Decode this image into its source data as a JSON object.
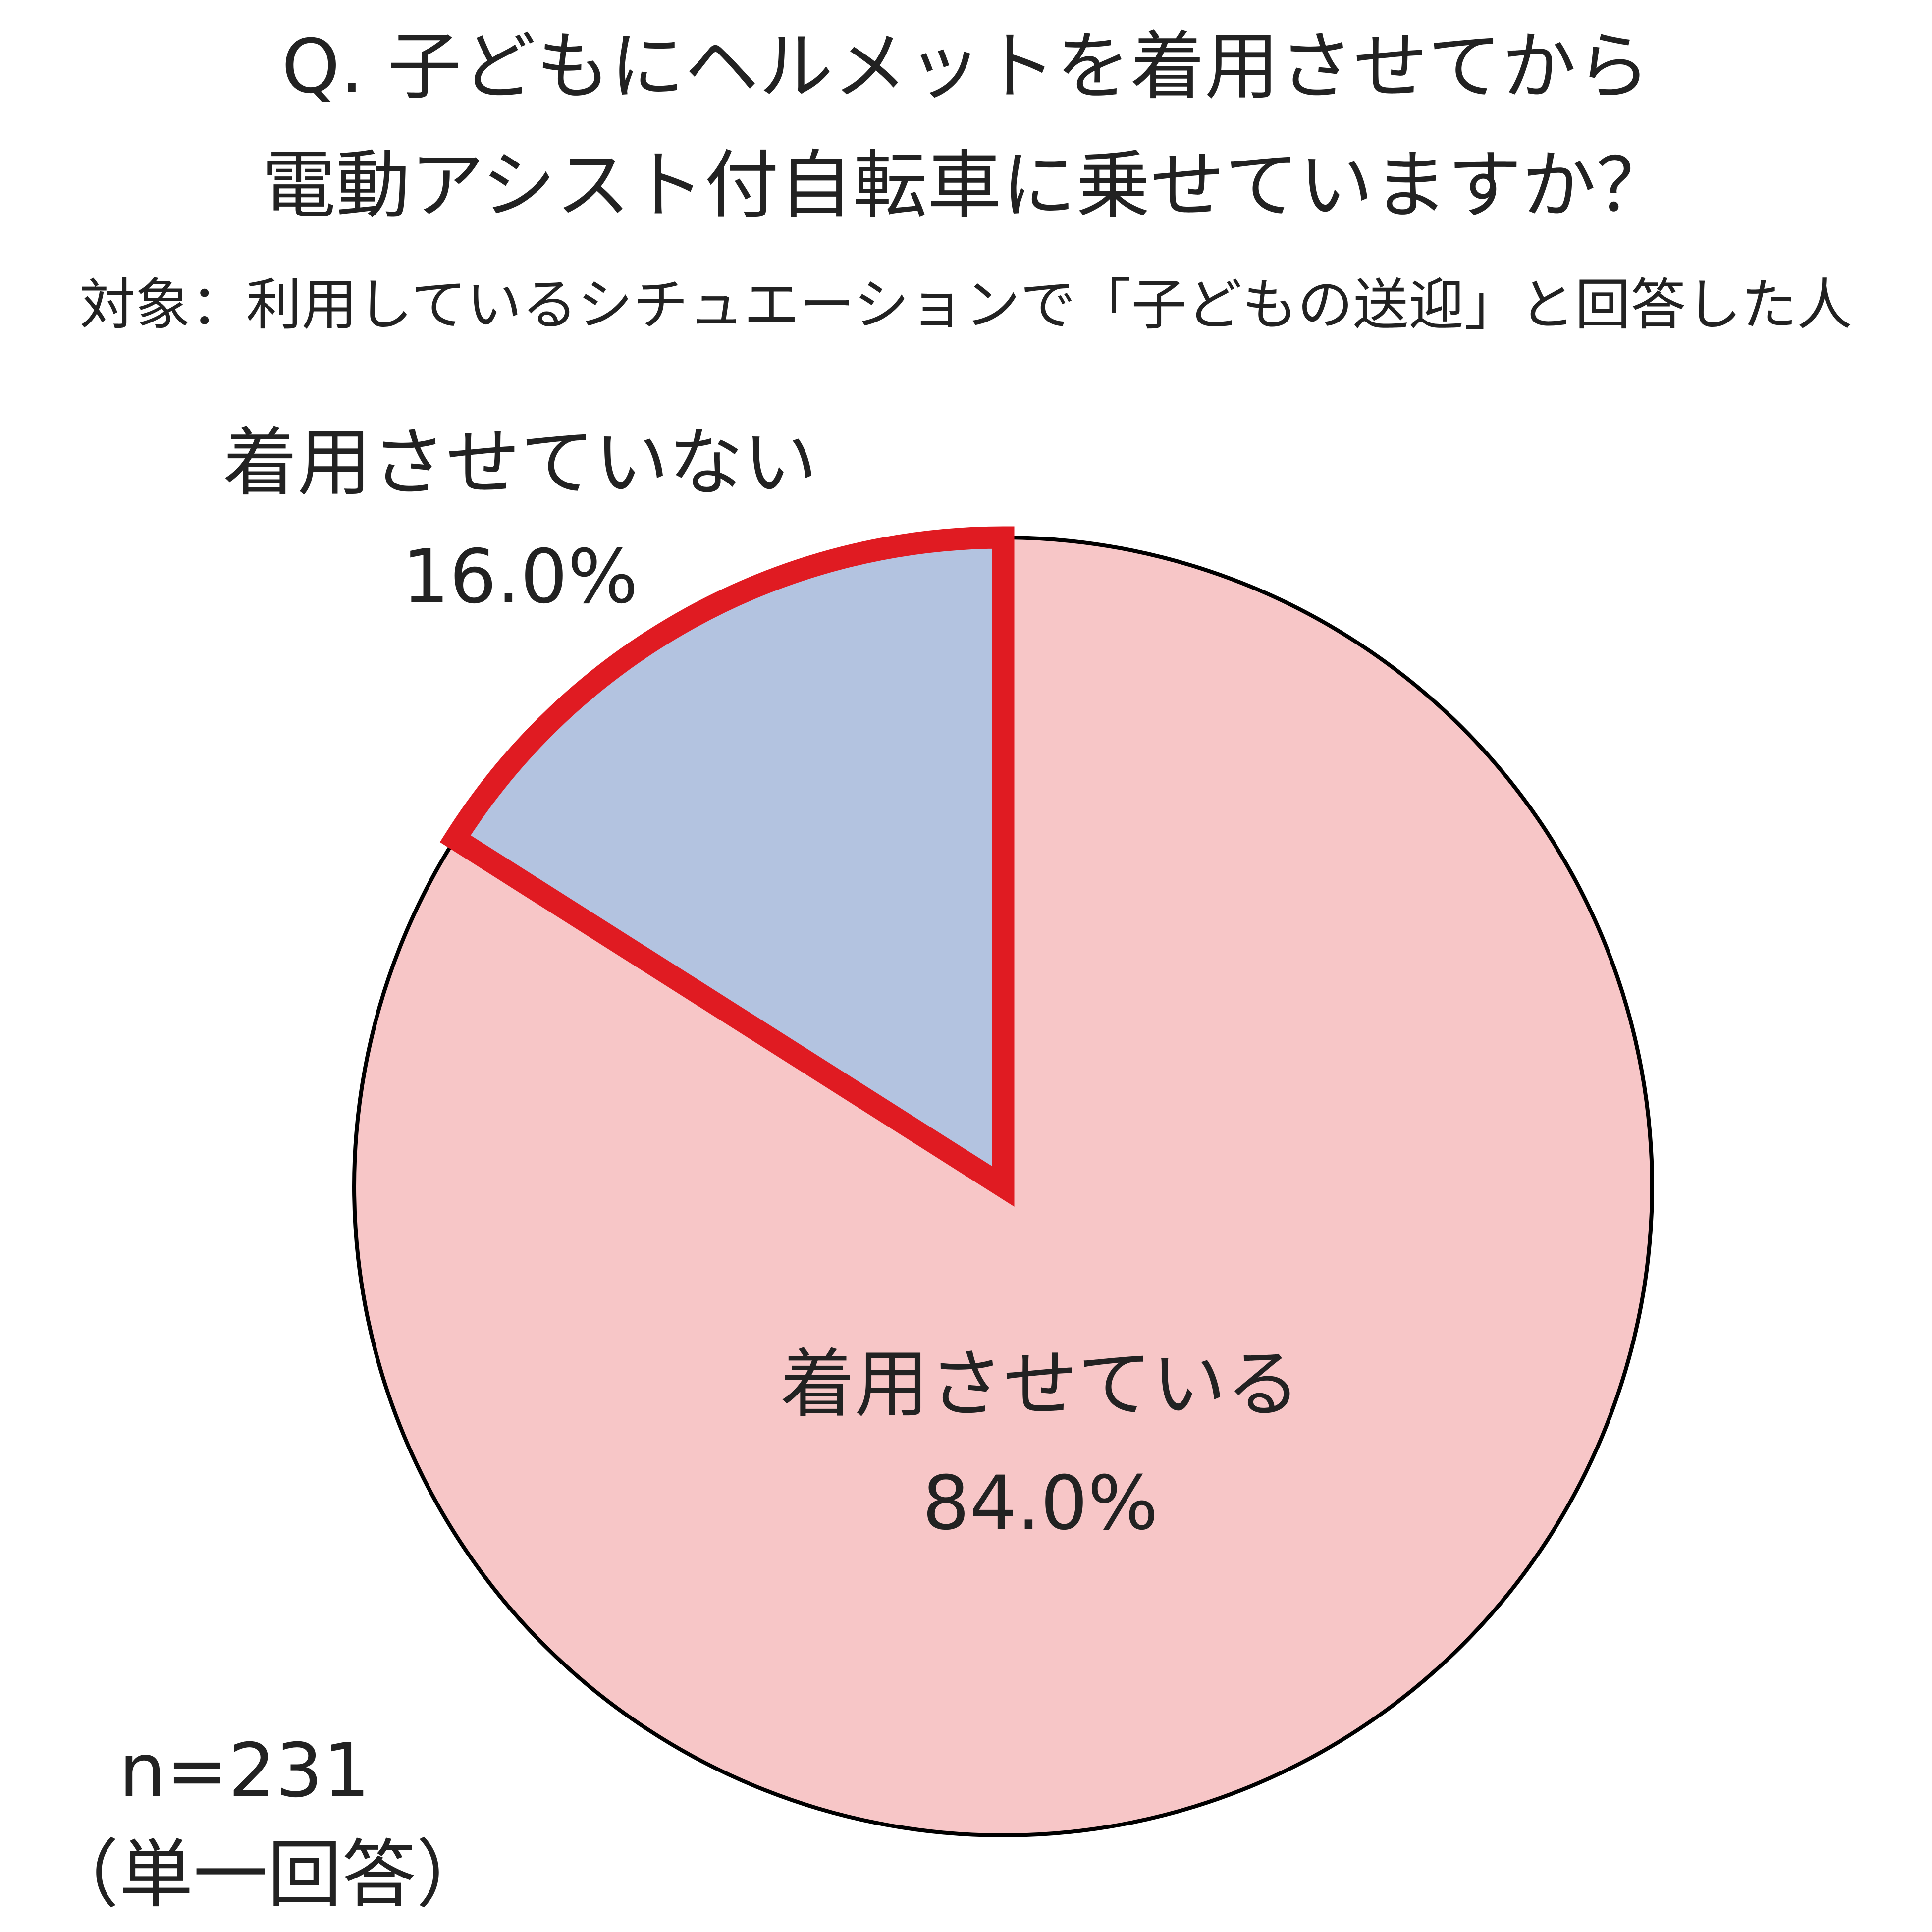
{
  "title_line1": "Q. 子どもにヘルメットを着用させてから",
  "title_line2": "電動アシスト付自転車に乗せていますか？",
  "subtitle": "対象：利用しているシチュエーションで「子どもの送迎」と回答した人",
  "sample_size": "n=231",
  "answer_type": "（単一回答）",
  "chart_data": {
    "type": "pie",
    "title": "Q. 子どもにヘルメットを着用させてから電動アシスト付自転車に乗せていますか？",
    "slices": [
      {
        "label": "着用させている",
        "value": 84.0,
        "value_label": "84.0%",
        "color": "#f7c6c7",
        "outline": "#000000"
      },
      {
        "label": "着用させていない",
        "value": 16.0,
        "value_label": "16.0%",
        "color": "#b3c3e0",
        "outline": "#e01b22",
        "highlighted": true
      }
    ],
    "start": "12 o'clock",
    "direction": "clockwise",
    "legend": "none (labels on chart)"
  }
}
